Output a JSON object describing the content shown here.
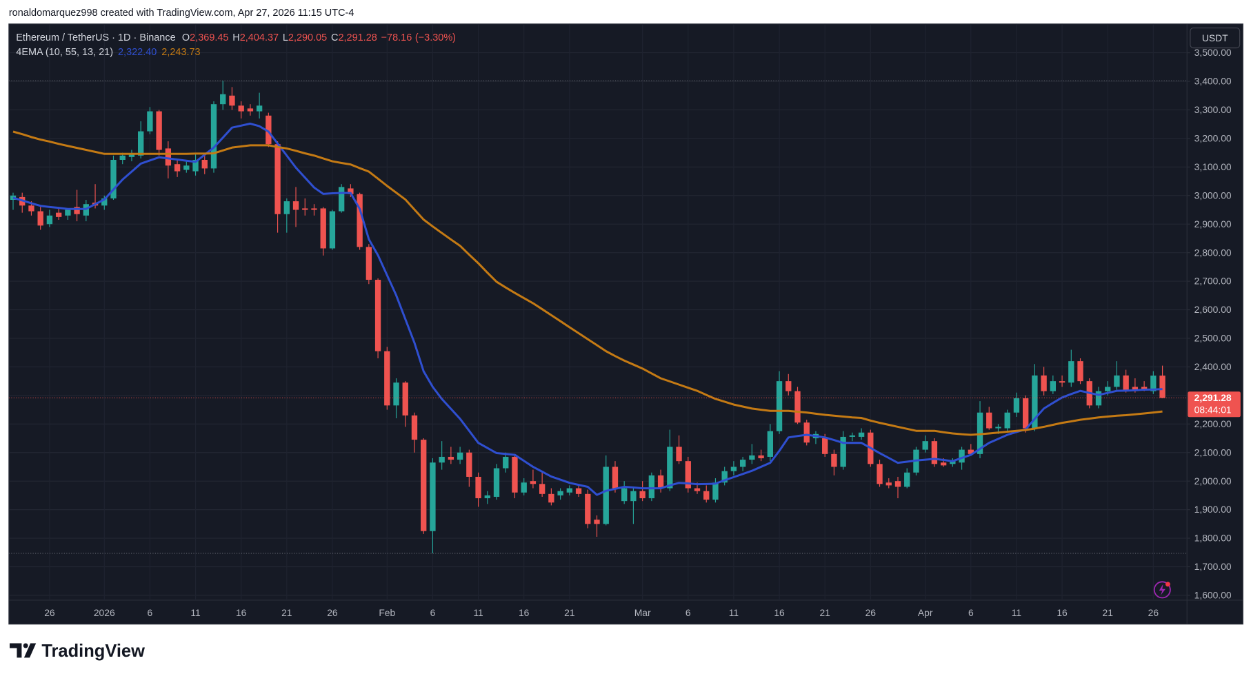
{
  "header": "ronaldomarquez998 created with TradingView.com, Apr 27, 2026 11:15 UTC-4",
  "brand": "TradingView",
  "chart_data": {
    "type": "candlestick",
    "title": "Ethereum / TetherUS · 1D · Binance",
    "legend": [
      {
        "key": "O",
        "value": 2369.45,
        "label": "2,369.45"
      },
      {
        "key": "H",
        "value": 2404.37,
        "label": "2,404.37"
      },
      {
        "key": "L",
        "value": 2290.05,
        "label": "2,290.05"
      },
      {
        "key": "C",
        "value": 2291.28,
        "label": "2,291.28"
      }
    ],
    "change": {
      "value": -78.16,
      "label": "−78.16"
    },
    "change_pct": {
      "value": -3.3,
      "label": "(−3.30%)"
    },
    "currency": "USDT",
    "countdown": "08:44:01",
    "up_color": "#26a69a",
    "down_color": "#ef5350",
    "last_price": {
      "value": 2291.28,
      "label": "2,291.28"
    },
    "range_high": 3402,
    "range_low": 1747,
    "ylim": [
      1583,
      3601
    ],
    "yticks": [
      {
        "value": 1600,
        "label": "1,600.00"
      },
      {
        "value": 1700,
        "label": "1,700.00"
      },
      {
        "value": 1800,
        "label": "1,800.00"
      },
      {
        "value": 1900,
        "label": "1,900.00"
      },
      {
        "value": 2000,
        "label": "2,000.00"
      },
      {
        "value": 2100,
        "label": "2,100.00"
      },
      {
        "value": 2200,
        "label": "2,200.00"
      },
      {
        "value": 2300,
        "label": "2,300.00"
      },
      {
        "value": 2400,
        "label": "2,400.00"
      },
      {
        "value": 2500,
        "label": "2,500.00"
      },
      {
        "value": 2600,
        "label": "2,600.00"
      },
      {
        "value": 2700,
        "label": "2,700.00"
      },
      {
        "value": 2800,
        "label": "2,800.00"
      },
      {
        "value": 2900,
        "label": "2,900.00"
      },
      {
        "value": 3000,
        "label": "3,000.00"
      },
      {
        "value": 3100,
        "label": "3,100.00"
      },
      {
        "value": 3200,
        "label": "3,200.00"
      },
      {
        "value": 3300,
        "label": "3,300.00"
      },
      {
        "value": 3400,
        "label": "3,400.00"
      },
      {
        "value": 3500,
        "label": "3,500.00"
      }
    ],
    "xticks": [
      {
        "value": "2025-12-26",
        "label": "26"
      },
      {
        "value": "2026-01-01",
        "label": "2026"
      },
      {
        "value": "2026-01-06",
        "label": "6"
      },
      {
        "value": "2026-01-11",
        "label": "11"
      },
      {
        "value": "2026-01-16",
        "label": "16"
      },
      {
        "value": "2026-01-21",
        "label": "21"
      },
      {
        "value": "2026-01-26",
        "label": "26"
      },
      {
        "value": "2026-02-01",
        "label": "Feb"
      },
      {
        "value": "2026-02-06",
        "label": "6"
      },
      {
        "value": "2026-02-11",
        "label": "11"
      },
      {
        "value": "2026-02-16",
        "label": "16"
      },
      {
        "value": "2026-02-21",
        "label": "21"
      },
      {
        "value": "2026-03-01",
        "label": "Mar"
      },
      {
        "value": "2026-03-06",
        "label": "6"
      },
      {
        "value": "2026-03-11",
        "label": "11"
      },
      {
        "value": "2026-03-16",
        "label": "16"
      },
      {
        "value": "2026-03-21",
        "label": "21"
      },
      {
        "value": "2026-03-26",
        "label": "26"
      },
      {
        "value": "2026-04-01",
        "label": "Apr"
      },
      {
        "value": "2026-04-06",
        "label": "6"
      },
      {
        "value": "2026-04-11",
        "label": "11"
      },
      {
        "value": "2026-04-16",
        "label": "16"
      },
      {
        "value": "2026-04-21",
        "label": "21"
      },
      {
        "value": "2026-04-26",
        "label": "26"
      }
    ],
    "x": [
      "2025-12-22",
      "2025-12-23",
      "2025-12-24",
      "2025-12-25",
      "2025-12-26",
      "2025-12-27",
      "2025-12-28",
      "2025-12-29",
      "2025-12-30",
      "2025-12-31",
      "2026-01-01",
      "2026-01-02",
      "2026-01-03",
      "2026-01-04",
      "2026-01-05",
      "2026-01-06",
      "2026-01-07",
      "2026-01-08",
      "2026-01-09",
      "2026-01-10",
      "2026-01-11",
      "2026-01-12",
      "2026-01-13",
      "2026-01-14",
      "2026-01-15",
      "2026-01-16",
      "2026-01-17",
      "2026-01-18",
      "2026-01-19",
      "2026-01-20",
      "2026-01-21",
      "2026-01-22",
      "2026-01-23",
      "2026-01-24",
      "2026-01-25",
      "2026-01-26",
      "2026-01-27",
      "2026-01-28",
      "2026-01-29",
      "2026-01-30",
      "2026-01-31",
      "2026-02-01",
      "2026-02-02",
      "2026-02-03",
      "2026-02-04",
      "2026-02-05",
      "2026-02-06",
      "2026-02-07",
      "2026-02-08",
      "2026-02-09",
      "2026-02-10",
      "2026-02-11",
      "2026-02-12",
      "2026-02-13",
      "2026-02-14",
      "2026-02-15",
      "2026-02-16",
      "2026-02-17",
      "2026-02-18",
      "2026-02-19",
      "2026-02-20",
      "2026-02-21",
      "2026-02-22",
      "2026-02-23",
      "2026-02-24",
      "2026-02-25",
      "2026-02-26",
      "2026-02-27",
      "2026-02-28",
      "2026-03-01",
      "2026-03-02",
      "2026-03-03",
      "2026-03-04",
      "2026-03-05",
      "2026-03-06",
      "2026-03-07",
      "2026-03-08",
      "2026-03-09",
      "2026-03-10",
      "2026-03-11",
      "2026-03-12",
      "2026-03-13",
      "2026-03-14",
      "2026-03-15",
      "2026-03-16",
      "2026-03-17",
      "2026-03-18",
      "2026-03-19",
      "2026-03-20",
      "2026-03-21",
      "2026-03-22",
      "2026-03-23",
      "2026-03-24",
      "2026-03-25",
      "2026-03-26",
      "2026-03-27",
      "2026-03-28",
      "2026-03-29",
      "2026-03-30",
      "2026-03-31",
      "2026-04-01",
      "2026-04-02",
      "2026-04-03",
      "2026-04-04",
      "2026-04-05",
      "2026-04-06",
      "2026-04-07",
      "2026-04-08",
      "2026-04-09",
      "2026-04-10",
      "2026-04-11",
      "2026-04-12",
      "2026-04-13",
      "2026-04-14",
      "2026-04-15",
      "2026-04-16",
      "2026-04-17",
      "2026-04-18",
      "2026-04-19",
      "2026-04-20",
      "2026-04-21",
      "2026-04-22",
      "2026-04-23",
      "2026-04-24",
      "2026-04-25",
      "2026-04-26",
      "2026-04-27"
    ],
    "ohlc": {
      "open": [
        2985,
        2995,
        2965,
        2945,
        2900,
        2940,
        2930,
        2960,
        2930,
        2975,
        2965,
        2990,
        3125,
        3135,
        3140,
        3225,
        3295,
        3165,
        3110,
        3090,
        3085,
        3125,
        3095,
        3320,
        3350,
        3315,
        3305,
        3295,
        3280,
        3180,
        2935,
        2980,
        2955,
        2955,
        2955,
        2815,
        2945,
        3025,
        3005,
        2820,
        2705,
        2455,
        2265,
        2345,
        2230,
        2145,
        1825,
        2065,
        2085,
        2075,
        2100,
        2015,
        1940,
        1945,
        2045,
        2085,
        1960,
        2000,
        1990,
        1955,
        1950,
        1960,
        1975,
        1955,
        1865,
        1850,
        2050,
        1930,
        1930,
        1965,
        1940,
        2020,
        1975,
        2120,
        2070,
        1975,
        1965,
        1935,
        1995,
        2035,
        2050,
        2075,
        2090,
        2085,
        2175,
        2350,
        2315,
        2205,
        2150,
        2150,
        2095,
        2050,
        2155,
        2155,
        2170,
        2060,
        1995,
        2000,
        1980,
        2030,
        2110,
        2140,
        2065,
        2060,
        2065,
        2110,
        2095,
        2240,
        2185,
        2185,
        2240,
        2290,
        2185,
        2370,
        2315,
        2350,
        2345,
        2420,
        2350,
        2265,
        2315,
        2330,
        2370,
        2330,
        2330,
        2315,
        2369.45
      ],
      "high": [
        3010,
        3010,
        2980,
        2960,
        2950,
        2960,
        2955,
        3020,
        2985,
        3040,
        3000,
        3140,
        3150,
        3160,
        3260,
        3310,
        3300,
        3190,
        3125,
        3120,
        3150,
        3140,
        3330,
        3402,
        3380,
        3330,
        3320,
        3360,
        3290,
        3190,
        2990,
        3030,
        2990,
        2970,
        2960,
        2950,
        3040,
        3040,
        3010,
        2830,
        2710,
        2470,
        2360,
        2350,
        2240,
        2150,
        2080,
        2140,
        2120,
        2120,
        2110,
        2030,
        1965,
        2060,
        2100,
        2095,
        2010,
        2040,
        2030,
        1975,
        1975,
        1985,
        1990,
        1970,
        1880,
        2090,
        2070,
        2000,
        1980,
        2000,
        2030,
        2040,
        2180,
        2160,
        2085,
        1995,
        1985,
        2010,
        2050,
        2070,
        2085,
        2130,
        2110,
        2200,
        2385,
        2375,
        2330,
        2215,
        2175,
        2165,
        2110,
        2175,
        2170,
        2185,
        2180,
        2075,
        2010,
        2015,
        2045,
        2120,
        2160,
        2150,
        2080,
        2080,
        2120,
        2130,
        2280,
        2260,
        2200,
        2250,
        2310,
        2300,
        2410,
        2400,
        2370,
        2370,
        2460,
        2430,
        2360,
        2330,
        2350,
        2420,
        2390,
        2360,
        2350,
        2385,
        2404.37
      ],
      "low": [
        2950,
        2940,
        2930,
        2880,
        2890,
        2915,
        2915,
        2910,
        2910,
        2955,
        2950,
        2985,
        3110,
        3120,
        3130,
        3215,
        3140,
        3060,
        3065,
        3080,
        3070,
        3075,
        3080,
        3300,
        3300,
        3270,
        3280,
        3270,
        3170,
        2870,
        2870,
        2890,
        2930,
        2930,
        2790,
        2810,
        2940,
        2995,
        2810,
        2690,
        2430,
        2250,
        2220,
        2190,
        2100,
        1815,
        1747,
        2040,
        2060,
        2060,
        1980,
        1910,
        1920,
        1935,
        2030,
        1940,
        1950,
        1975,
        1945,
        1915,
        1935,
        1950,
        1945,
        1835,
        1805,
        1845,
        1960,
        1920,
        1850,
        1930,
        1930,
        1960,
        1965,
        2060,
        1960,
        1955,
        1925,
        1925,
        1985,
        2020,
        2035,
        2060,
        2070,
        2070,
        2165,
        2300,
        2200,
        2125,
        2130,
        2085,
        2020,
        2040,
        2140,
        2145,
        2050,
        1980,
        1975,
        1940,
        1975,
        2020,
        2100,
        2050,
        2050,
        2050,
        2040,
        2090,
        2080,
        2180,
        2165,
        2170,
        2225,
        2170,
        2175,
        2300,
        2305,
        2330,
        2330,
        2340,
        2255,
        2255,
        2300,
        2320,
        2310,
        2310,
        2315,
        2305,
        2290.05
      ],
      "close": [
        3000,
        2965,
        2945,
        2895,
        2930,
        2925,
        2950,
        2935,
        2970,
        2965,
        2990,
        3125,
        3140,
        3145,
        3225,
        3295,
        3160,
        3105,
        3085,
        3105,
        3125,
        3095,
        3320,
        3355,
        3315,
        3295,
        3295,
        3315,
        3180,
        2935,
        2980,
        2950,
        2950,
        2950,
        2815,
        2945,
        3030,
        3005,
        2820,
        2705,
        2455,
        2265,
        2345,
        2230,
        2145,
        1825,
        2065,
        2085,
        2075,
        2100,
        2015,
        1940,
        1950,
        2045,
        2085,
        1960,
        1995,
        1990,
        1955,
        1925,
        1965,
        1975,
        1955,
        1850,
        1850,
        2050,
        1975,
        1975,
        1965,
        1940,
        2020,
        1975,
        2120,
        2070,
        1975,
        1965,
        1935,
        1995,
        2035,
        2050,
        2075,
        2090,
        2080,
        2175,
        2350,
        2315,
        2205,
        2135,
        2165,
        2095,
        2050,
        2155,
        2160,
        2170,
        2060,
        1990,
        1985,
        1980,
        2030,
        2110,
        2140,
        2060,
        2055,
        2070,
        2110,
        2095,
        2240,
        2185,
        2190,
        2240,
        2290,
        2185,
        2370,
        2315,
        2350,
        2345,
        2420,
        2350,
        2265,
        2315,
        2330,
        2370,
        2320,
        2320,
        2322,
        2369.45,
        2291.28
      ]
    },
    "indicator": {
      "name": "4EMA (10, 55, 13, 21)",
      "series": [
        {
          "color": "#2f4fd0",
          "last": {
            "value": 2322.4,
            "label": "2,322.40"
          },
          "values": [
            2992,
            2983,
            2973,
            2964,
            2960,
            2957,
            2953,
            2953,
            2953,
            2970,
            2986,
            3021,
            3056,
            3084,
            3112,
            3123,
            3134,
            3130,
            3126,
            3122,
            3118,
            3143,
            3168,
            3203,
            3238,
            3245,
            3252,
            3243,
            3224,
            3182,
            3140,
            3098,
            3063,
            3028,
            3006,
            3008,
            3009,
            3009,
            2953,
            2847,
            2791,
            2721,
            2651,
            2567,
            2484,
            2385,
            2330,
            2288,
            2253,
            2218,
            2176,
            2134,
            2116,
            2098,
            2095,
            2092,
            2071,
            2050,
            2033,
            2016,
            2005,
            1994,
            1987,
            1980,
            1952,
            1966,
            1973,
            1980,
            1978,
            1975,
            1975,
            1975,
            1985,
            1994,
            1992,
            1989,
            1990,
            1991,
            2003,
            2014,
            2025,
            2036,
            2050,
            2064,
            2106,
            2153,
            2158,
            2162,
            2158,
            2153,
            2144,
            2134,
            2134,
            2134,
            2116,
            2098,
            2081,
            2064,
            2068,
            2072,
            2075,
            2078,
            2074,
            2070,
            2081,
            2092,
            2113,
            2134,
            2148,
            2162,
            2172,
            2181,
            2218,
            2254,
            2274,
            2293,
            2305,
            2316,
            2309,
            2302,
            2309,
            2316,
            2317,
            2318,
            2320,
            2321,
            2322.4
          ]
        },
        {
          "color": "#c47a14",
          "last": {
            "value": 2243.73,
            "label": "2,243.73"
          },
          "values": [
            3224,
            3215,
            3205,
            3196,
            3189,
            3181,
            3174,
            3167,
            3160,
            3153,
            3146,
            3146,
            3146,
            3146,
            3146,
            3146,
            3146,
            3146,
            3146,
            3146,
            3147,
            3147,
            3148,
            3158,
            3168,
            3172,
            3176,
            3176,
            3176,
            3170,
            3165,
            3157,
            3148,
            3140,
            3130,
            3120,
            3114,
            3109,
            3096,
            3084,
            3059,
            3034,
            3010,
            2986,
            2951,
            2916,
            2892,
            2869,
            2846,
            2824,
            2793,
            2763,
            2730,
            2698,
            2678,
            2659,
            2641,
            2623,
            2602,
            2581,
            2560,
            2539,
            2518,
            2497,
            2476,
            2455,
            2438,
            2422,
            2408,
            2394,
            2377,
            2360,
            2349,
            2338,
            2327,
            2316,
            2302,
            2288,
            2278,
            2268,
            2261,
            2254,
            2250,
            2246,
            2246,
            2246,
            2243,
            2240,
            2236,
            2232,
            2229,
            2226,
            2223,
            2221,
            2212,
            2204,
            2197,
            2190,
            2183,
            2176,
            2176,
            2176,
            2171,
            2167,
            2164,
            2162,
            2164,
            2167,
            2170,
            2173,
            2176,
            2179,
            2184,
            2190,
            2197,
            2204,
            2209,
            2215,
            2219,
            2223,
            2226,
            2229,
            2231,
            2234,
            2237,
            2240,
            2243.73
          ]
        }
      ]
    }
  }
}
